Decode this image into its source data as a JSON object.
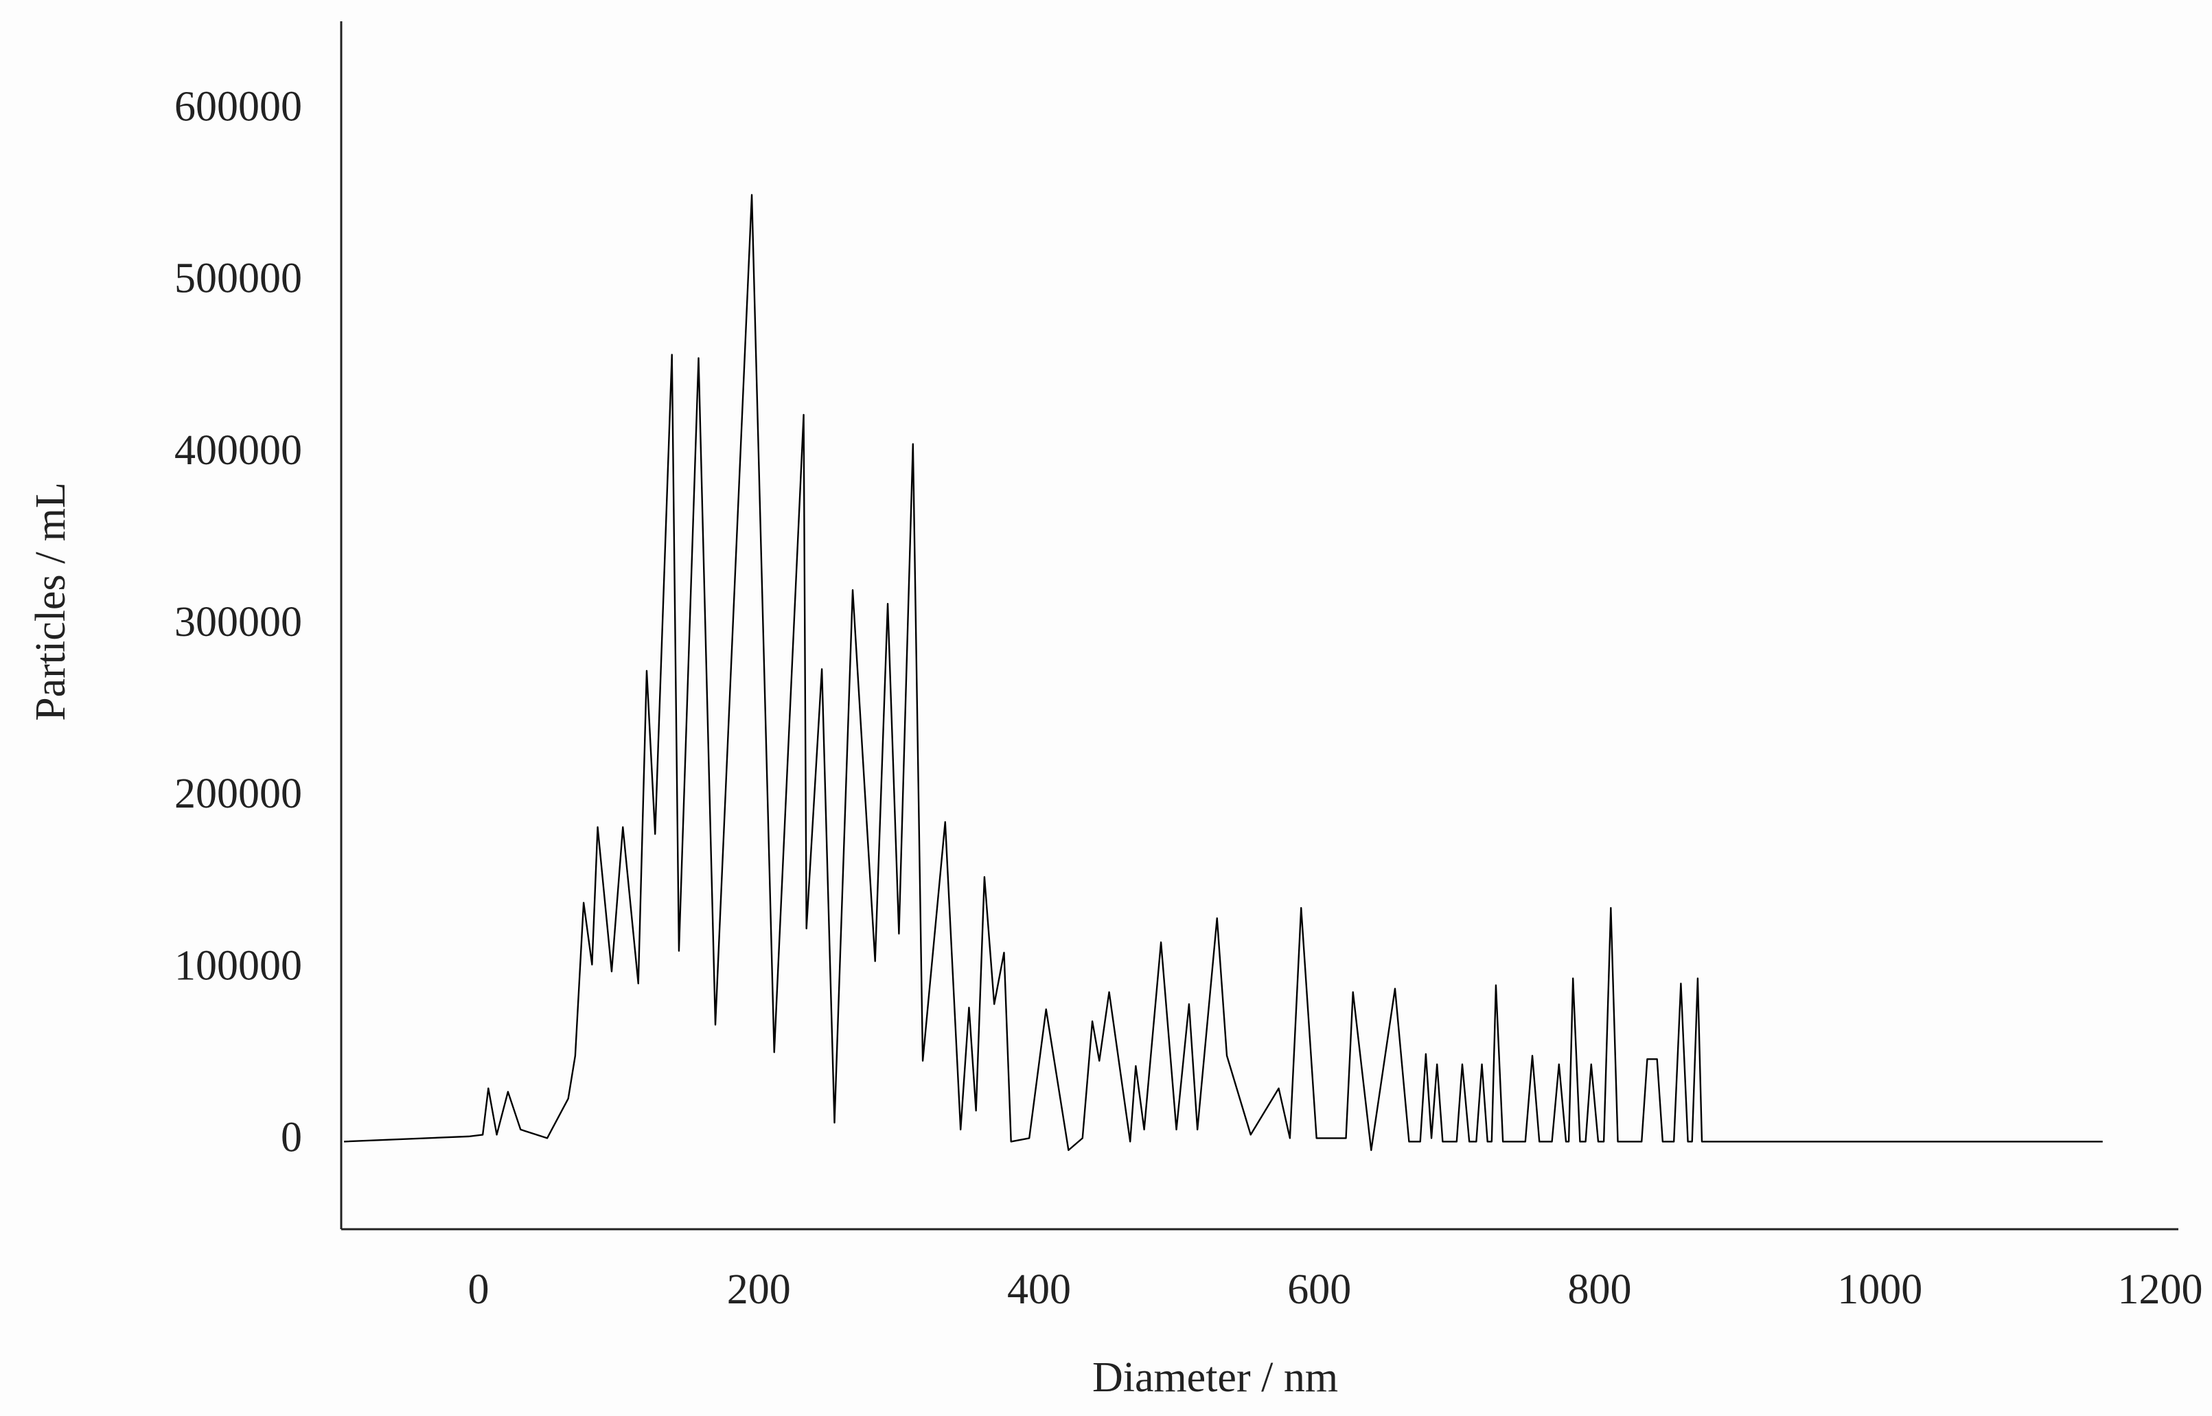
{
  "chart_data": {
    "type": "line",
    "x_label": "Diameter / nm",
    "y_label": "Particles / mL",
    "x": [
      -96,
      -7,
      3,
      7,
      13,
      21,
      30,
      49,
      64,
      69,
      75,
      81,
      85,
      95,
      103,
      114,
      120,
      126,
      138,
      143,
      157,
      169,
      195,
      211,
      232,
      234,
      245,
      254,
      267,
      283,
      292,
      300,
      310,
      317,
      333,
      344,
      350,
      355,
      361,
      368,
      375,
      380,
      393,
      405,
      421,
      431,
      438,
      443,
      450,
      465,
      469,
      475,
      487,
      498,
      507,
      513,
      527,
      534,
      551,
      571,
      579,
      587,
      598,
      619,
      624,
      637,
      654,
      664,
      672,
      676,
      680,
      684,
      688,
      698,
      702,
      707,
      712,
      716,
      720,
      723,
      726,
      731,
      747,
      752,
      757,
      766,
      771,
      776,
      778,
      781,
      786,
      790,
      794,
      799,
      803,
      808,
      813,
      830,
      834,
      841,
      845,
      853,
      858,
      863,
      866,
      870,
      873,
      1159
    ],
    "series": [
      {
        "color": "#000000",
        "values": [
          0,
          3000,
          4000,
          31000,
          4000,
          29000,
          7000,
          2000,
          25000,
          50000,
          139000,
          103000,
          183000,
          99000,
          183000,
          92000,
          274000,
          179000,
          458000,
          111000,
          456000,
          68000,
          551000,
          52000,
          423000,
          124000,
          275000,
          11000,
          321000,
          105000,
          313000,
          121000,
          406000,
          47000,
          186000,
          7000,
          78000,
          18000,
          154000,
          80000,
          110000,
          0,
          2000,
          77000,
          -5000,
          2000,
          70000,
          47000,
          87000,
          0,
          44000,
          7000,
          116000,
          7000,
          80000,
          7000,
          130000,
          50000,
          4000,
          31000,
          2000,
          136000,
          2000,
          2000,
          87000,
          -5000,
          89000,
          0,
          0,
          51000,
          2000,
          45000,
          0,
          0,
          45000,
          0,
          0,
          45000,
          0,
          0,
          91000,
          0,
          0,
          50000,
          0,
          0,
          45000,
          0,
          0,
          95000,
          0,
          0,
          45000,
          0,
          0,
          136000,
          0,
          0,
          48000,
          48000,
          0,
          0,
          92000,
          0,
          0,
          95000,
          0,
          0
        ]
      }
    ],
    "xlim": [
      -98,
      1213
    ],
    "ylim": [
      -51000,
      652000
    ],
    "xticks": [
      0,
      200,
      400,
      600,
      800,
      1000,
      1200
    ],
    "yticks": [
      0,
      100000,
      200000,
      300000,
      400000,
      500000,
      600000
    ],
    "grid": false
  }
}
